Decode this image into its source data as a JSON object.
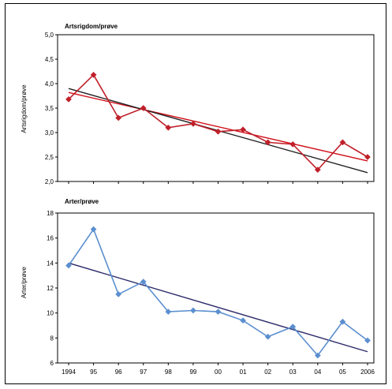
{
  "chart_data": [
    {
      "type": "line",
      "title": "Artsrigdom/prøve",
      "xlabel": "",
      "ylabel": "Artsrigdom/prøve",
      "x": [
        "1994",
        "95",
        "96",
        "97",
        "98",
        "99",
        "00",
        "01",
        "02",
        "03",
        "04",
        "05",
        "2006"
      ],
      "ylim": [
        2.0,
        5.0
      ],
      "yticks": [
        "2,0",
        "2,5",
        "3,0",
        "3,5",
        "4,0",
        "4,5",
        "5,0"
      ],
      "grid": false,
      "series": [
        {
          "values": [
            3.68,
            4.18,
            3.3,
            3.5,
            3.1,
            3.18,
            3.02,
            3.06,
            2.8,
            2.76,
            2.24,
            2.8,
            2.5
          ],
          "color": "#c0202a",
          "marker": "diamond"
        }
      ],
      "trendlines": [
        {
          "from": 3.82,
          "to": 2.42,
          "color": "#d0101a"
        },
        {
          "from": 3.9,
          "to": 2.18,
          "color": "#222222"
        }
      ]
    },
    {
      "type": "line",
      "title": "Arter/prøve",
      "xlabel": "",
      "ylabel": "Arter/prøve",
      "x": [
        "1994",
        "95",
        "96",
        "97",
        "98",
        "99",
        "00",
        "01",
        "02",
        "03",
        "04",
        "05",
        "2006"
      ],
      "ylim": [
        6,
        18
      ],
      "yticks": [
        "6",
        "8",
        "10",
        "12",
        "14",
        "16",
        "18"
      ],
      "grid": false,
      "series": [
        {
          "values": [
            13.8,
            16.7,
            11.5,
            12.5,
            10.1,
            10.2,
            10.1,
            9.4,
            8.1,
            8.9,
            6.6,
            9.3,
            7.8
          ],
          "color": "#5b8fcf",
          "marker": "diamond"
        }
      ],
      "trendlines": [
        {
          "from": 14.0,
          "to": 6.9,
          "color": "#2a2a6a"
        }
      ]
    }
  ]
}
